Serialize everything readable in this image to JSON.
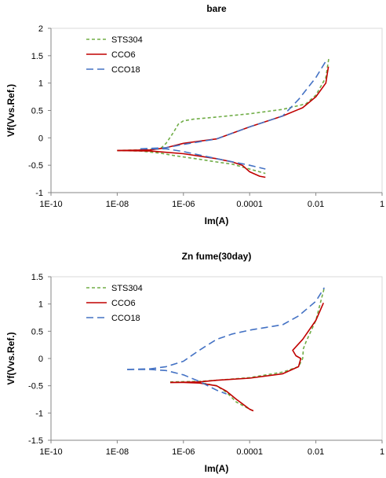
{
  "chart_data": [
    {
      "type": "line",
      "title": "bare",
      "xlabel": "Im(A)",
      "ylabel": "Vf(Vvs.Ref.)",
      "x_scale": "log",
      "xlim": [
        1e-10,
        1
      ],
      "ylim": [
        -1,
        2
      ],
      "x_ticks": [
        "1E-10",
        "1E-08",
        "1E-06",
        "0.0001",
        "0.01",
        "1"
      ],
      "y_ticks": [
        "-1",
        "-0.5",
        "0",
        "0.5",
        "1",
        "1.5",
        "2"
      ],
      "legend_position": "top-left",
      "series": [
        {
          "name": "STS304",
          "color": "#70ad47",
          "dash": "short-dash",
          "branches": [
            {
              "x": [
                1e-08,
                5e-08,
                2e-07,
                6e-07,
                3e-06,
                1e-05,
                3e-05,
                0.0001,
                0.0003
              ],
              "y": [
                -0.23,
                -0.24,
                -0.28,
                -0.33,
                -0.39,
                -0.44,
                -0.48,
                -0.57,
                -0.65
              ]
            },
            {
              "x": [
                1e-08,
                5e-08,
                2e-07,
                3e-07,
                5e-07,
                7e-07,
                1e-06,
                2e-06,
                1e-05,
                0.0001,
                0.001,
                0.005,
                0.01,
                0.02,
                0.025
              ],
              "y": [
                -0.23,
                -0.22,
                -0.2,
                -0.1,
                0.1,
                0.25,
                0.31,
                0.34,
                0.38,
                0.44,
                0.52,
                0.62,
                0.78,
                1.1,
                1.48
              ]
            }
          ]
        },
        {
          "name": "CCO6",
          "color": "#c00000",
          "dash": "solid",
          "branches": [
            {
              "x": [
                1e-08,
                1e-07,
                1e-06,
                1e-05,
                3e-05,
                6e-05,
                0.0001,
                0.0002,
                0.0003
              ],
              "y": [
                -0.23,
                -0.24,
                -0.29,
                -0.38,
                -0.44,
                -0.5,
                -0.62,
                -0.7,
                -0.72
              ]
            },
            {
              "x": [
                1e-08,
                1e-07,
                3e-07,
                1e-06,
                1e-05,
                0.0001,
                0.001,
                0.004,
                0.01,
                0.02,
                0.024
              ],
              "y": [
                -0.23,
                -0.22,
                -0.18,
                -0.1,
                -0.02,
                0.2,
                0.4,
                0.55,
                0.75,
                1.0,
                1.3
              ]
            }
          ]
        },
        {
          "name": "CCO18",
          "color": "#4472c4",
          "dash": "long-dash",
          "branches": [
            {
              "x": [
                5e-08,
                3e-07,
                1e-06,
                1e-05,
                0.0001,
                0.0003
              ],
              "y": [
                -0.2,
                -0.2,
                -0.25,
                -0.38,
                -0.5,
                -0.57
              ]
            },
            {
              "x": [
                5e-08,
                3e-07,
                1e-06,
                1e-05,
                0.0001,
                0.001,
                0.003,
                0.01,
                0.02
              ],
              "y": [
                -0.2,
                -0.18,
                -0.12,
                -0.02,
                0.2,
                0.4,
                0.7,
                1.1,
                1.4
              ]
            }
          ]
        }
      ]
    },
    {
      "type": "line",
      "title": "Zn fume(30day)",
      "xlabel": "Im(A)",
      "ylabel": "Vf(Vvs.Ref.)",
      "x_scale": "log",
      "xlim": [
        1e-10,
        1
      ],
      "ylim": [
        -1.5,
        1.5
      ],
      "x_ticks": [
        "1E-10",
        "1E-08",
        "1E-06",
        "0.0001",
        "0.01",
        "1"
      ],
      "y_ticks": [
        "-1.5",
        "-1",
        "-0.5",
        "0",
        "0.5",
        "1",
        "1.5"
      ],
      "legend_position": "top-left",
      "series": [
        {
          "name": "STS304",
          "color": "#70ad47",
          "dash": "short-dash",
          "branches": [
            {
              "x": [
                4e-07,
                1e-06,
                3e-06,
                1e-05,
                2e-05,
                4e-05,
                7e-05,
                0.0001,
                0.00013
              ],
              "y": [
                -0.43,
                -0.43,
                -0.44,
                -0.5,
                -0.62,
                -0.8,
                -0.88,
                -0.93,
                -0.96
              ]
            },
            {
              "x": [
                4e-07,
                3e-06,
                1e-05,
                0.0001,
                0.001,
                0.003,
                0.004,
                0.0042,
                0.005,
                0.01,
                0.018
              ],
              "y": [
                -0.43,
                -0.42,
                -0.4,
                -0.35,
                -0.25,
                -0.15,
                0.0,
                0.18,
                0.3,
                0.7,
                1.3
              ]
            }
          ]
        },
        {
          "name": "CCO6",
          "color": "#c00000",
          "dash": "solid",
          "branches": [
            {
              "x": [
                4e-07,
                1e-06,
                3e-06,
                1e-05,
                2e-05,
                4e-05,
                7e-05,
                0.0001,
                0.00013
              ],
              "y": [
                -0.44,
                -0.44,
                -0.45,
                -0.5,
                -0.6,
                -0.75,
                -0.86,
                -0.93,
                -0.96
              ]
            },
            {
              "x": [
                4e-07,
                3e-06,
                1e-05,
                0.0001,
                0.001,
                0.003,
                0.0035,
                0.0025,
                0.002,
                0.004,
                0.01,
                0.017
              ],
              "y": [
                -0.44,
                -0.43,
                -0.4,
                -0.36,
                -0.28,
                -0.15,
                0.0,
                0.05,
                0.15,
                0.35,
                0.7,
                1.02
              ]
            }
          ]
        },
        {
          "name": "CCO18",
          "color": "#4472c4",
          "dash": "long-dash",
          "branches": [
            {
              "x": [
                2e-08,
                1e-07,
                3e-07,
                1e-06,
                3e-06,
                1e-05,
                2e-05
              ],
              "y": [
                -0.2,
                -0.2,
                -0.22,
                -0.3,
                -0.42,
                -0.58,
                -0.65
              ]
            },
            {
              "x": [
                2e-08,
                1e-07,
                3e-07,
                1e-06,
                3e-06,
                1e-05,
                3e-05,
                0.0001,
                0.001,
                0.003,
                0.01,
                0.018
              ],
              "y": [
                -0.2,
                -0.19,
                -0.15,
                -0.05,
                0.15,
                0.35,
                0.45,
                0.52,
                0.62,
                0.78,
                1.05,
                1.3
              ]
            }
          ]
        }
      ]
    }
  ]
}
